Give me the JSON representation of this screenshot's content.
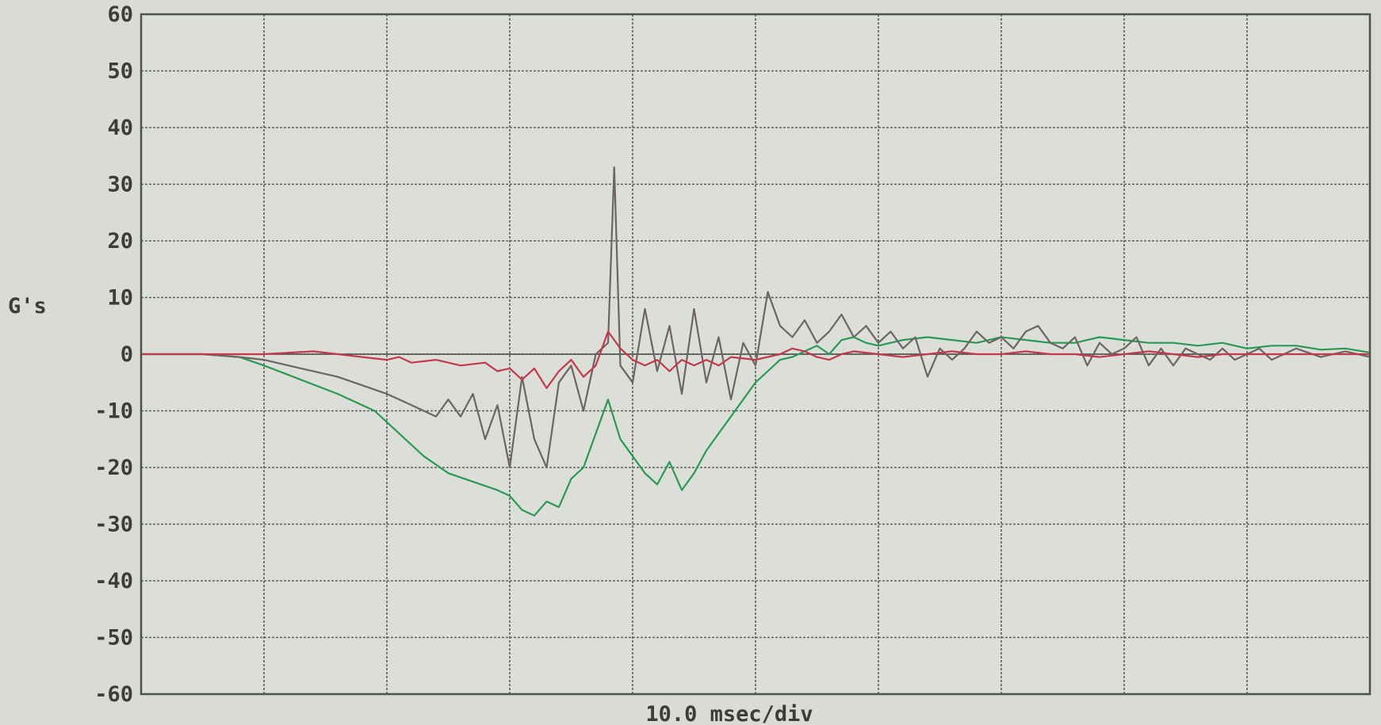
{
  "chart_data": {
    "type": "line",
    "xlabel": "10.0 msec/div",
    "ylabel": "G's",
    "ylim": [
      -60,
      60
    ],
    "yticks": [
      "60",
      "50",
      "40",
      "30",
      "20",
      "10",
      "0",
      "-10",
      "-20",
      "-30",
      "-40",
      "-50",
      "-60"
    ],
    "xlim": [
      0,
      100
    ],
    "x_divisions": 10,
    "grid": true,
    "legend": "none",
    "series": [
      {
        "color": "#2a9a52",
        "points": [
          [
            0,
            0
          ],
          [
            5,
            0
          ],
          [
            8,
            -0.5
          ],
          [
            10,
            -2
          ],
          [
            13,
            -4.5
          ],
          [
            16,
            -7
          ],
          [
            19,
            -10
          ],
          [
            21,
            -14
          ],
          [
            23,
            -18
          ],
          [
            25,
            -21
          ],
          [
            27,
            -22.5
          ],
          [
            29,
            -24
          ],
          [
            30,
            -25
          ],
          [
            31,
            -27.5
          ],
          [
            32,
            -28.5
          ],
          [
            33,
            -26
          ],
          [
            34,
            -27
          ],
          [
            35,
            -22
          ],
          [
            36,
            -20
          ],
          [
            37,
            -14
          ],
          [
            38,
            -8
          ],
          [
            39,
            -15
          ],
          [
            40,
            -18
          ],
          [
            41,
            -21
          ],
          [
            42,
            -23
          ],
          [
            43,
            -19
          ],
          [
            44,
            -24
          ],
          [
            45,
            -21
          ],
          [
            46,
            -17
          ],
          [
            47,
            -14
          ],
          [
            48,
            -11
          ],
          [
            49,
            -8
          ],
          [
            50,
            -5
          ],
          [
            51,
            -3
          ],
          [
            52,
            -1
          ],
          [
            53,
            -0.5
          ],
          [
            54,
            0.5
          ],
          [
            55,
            1.5
          ],
          [
            56,
            0
          ],
          [
            57,
            2.5
          ],
          [
            58,
            3
          ],
          [
            59,
            2
          ],
          [
            60,
            1.5
          ],
          [
            61,
            2
          ],
          [
            62,
            2.5
          ],
          [
            64,
            3
          ],
          [
            66,
            2.5
          ],
          [
            68,
            2
          ],
          [
            70,
            3
          ],
          [
            72,
            2.5
          ],
          [
            74,
            2
          ],
          [
            76,
            2
          ],
          [
            78,
            3
          ],
          [
            80,
            2.5
          ],
          [
            82,
            2
          ],
          [
            84,
            2
          ],
          [
            86,
            1.5
          ],
          [
            88,
            2
          ],
          [
            90,
            1
          ],
          [
            92,
            1.5
          ],
          [
            94,
            1.5
          ],
          [
            96,
            0.8
          ],
          [
            98,
            1
          ],
          [
            100,
            0.3
          ]
        ]
      },
      {
        "color": "#6e6466",
        "points": [
          [
            0,
            0
          ],
          [
            5,
            0
          ],
          [
            8,
            -0.5
          ],
          [
            10,
            -1
          ],
          [
            13,
            -2.5
          ],
          [
            16,
            -4
          ],
          [
            18,
            -5.5
          ],
          [
            20,
            -7
          ],
          [
            22,
            -9
          ],
          [
            23,
            -10
          ],
          [
            24,
            -11
          ],
          [
            25,
            -8
          ],
          [
            26,
            -11
          ],
          [
            27,
            -7
          ],
          [
            28,
            -15
          ],
          [
            29,
            -9
          ],
          [
            30,
            -20
          ],
          [
            31,
            -4
          ],
          [
            32,
            -15
          ],
          [
            33,
            -20
          ],
          [
            34,
            -5
          ],
          [
            35,
            -2
          ],
          [
            36,
            -10
          ],
          [
            37,
            0
          ],
          [
            38,
            2
          ],
          [
            38.5,
            33
          ],
          [
            39,
            -2
          ],
          [
            40,
            -5
          ],
          [
            41,
            8
          ],
          [
            42,
            -3
          ],
          [
            43,
            5
          ],
          [
            44,
            -7
          ],
          [
            45,
            8
          ],
          [
            46,
            -5
          ],
          [
            47,
            3
          ],
          [
            48,
            -8
          ],
          [
            49,
            2
          ],
          [
            50,
            -2
          ],
          [
            51,
            11
          ],
          [
            52,
            5
          ],
          [
            53,
            3
          ],
          [
            54,
            6
          ],
          [
            55,
            2
          ],
          [
            56,
            4
          ],
          [
            57,
            7
          ],
          [
            58,
            3
          ],
          [
            59,
            5
          ],
          [
            60,
            2
          ],
          [
            61,
            4
          ],
          [
            62,
            1
          ],
          [
            63,
            3
          ],
          [
            64,
            -4
          ],
          [
            65,
            1
          ],
          [
            66,
            -1
          ],
          [
            67,
            1
          ],
          [
            68,
            4
          ],
          [
            69,
            2
          ],
          [
            70,
            3
          ],
          [
            71,
            1
          ],
          [
            72,
            4
          ],
          [
            73,
            5
          ],
          [
            74,
            2
          ],
          [
            75,
            1
          ],
          [
            76,
            3
          ],
          [
            77,
            -2
          ],
          [
            78,
            2
          ],
          [
            79,
            0
          ],
          [
            80,
            1
          ],
          [
            81,
            3
          ],
          [
            82,
            -2
          ],
          [
            83,
            1
          ],
          [
            84,
            -2
          ],
          [
            85,
            1
          ],
          [
            86,
            0
          ],
          [
            87,
            -1
          ],
          [
            88,
            1
          ],
          [
            89,
            -1
          ],
          [
            90,
            0
          ],
          [
            91,
            1
          ],
          [
            92,
            -1
          ],
          [
            93,
            0
          ],
          [
            94,
            1
          ],
          [
            96,
            -0.5
          ],
          [
            98,
            0.5
          ],
          [
            100,
            -0.5
          ]
        ]
      },
      {
        "color": "#c23a4a",
        "points": [
          [
            0,
            0
          ],
          [
            10,
            0
          ],
          [
            14,
            0.5
          ],
          [
            18,
            -0.5
          ],
          [
            20,
            -1
          ],
          [
            21,
            -0.5
          ],
          [
            22,
            -1.5
          ],
          [
            24,
            -1
          ],
          [
            26,
            -2
          ],
          [
            28,
            -1.5
          ],
          [
            29,
            -3
          ],
          [
            30,
            -2.5
          ],
          [
            31,
            -4.5
          ],
          [
            32,
            -2.5
          ],
          [
            33,
            -6
          ],
          [
            34,
            -3
          ],
          [
            35,
            -1
          ],
          [
            36,
            -4
          ],
          [
            37,
            -2
          ],
          [
            38,
            4
          ],
          [
            39,
            1
          ],
          [
            40,
            -1
          ],
          [
            41,
            -2
          ],
          [
            42,
            -1
          ],
          [
            43,
            -3
          ],
          [
            44,
            -1
          ],
          [
            45,
            -2
          ],
          [
            46,
            -1
          ],
          [
            47,
            -2
          ],
          [
            48,
            -0.5
          ],
          [
            50,
            -1
          ],
          [
            52,
            0
          ],
          [
            53,
            1
          ],
          [
            54,
            0.5
          ],
          [
            55,
            -0.5
          ],
          [
            56,
            -1
          ],
          [
            57,
            0
          ],
          [
            58,
            0.5
          ],
          [
            60,
            0
          ],
          [
            62,
            -0.5
          ],
          [
            64,
            0
          ],
          [
            66,
            0.5
          ],
          [
            68,
            0
          ],
          [
            70,
            0
          ],
          [
            72,
            0.5
          ],
          [
            74,
            0
          ],
          [
            76,
            0
          ],
          [
            78,
            -0.5
          ],
          [
            80,
            0
          ],
          [
            82,
            0.5
          ],
          [
            84,
            0
          ],
          [
            86,
            -0.5
          ],
          [
            88,
            0
          ],
          [
            90,
            0
          ],
          [
            100,
            0
          ]
        ]
      }
    ]
  }
}
